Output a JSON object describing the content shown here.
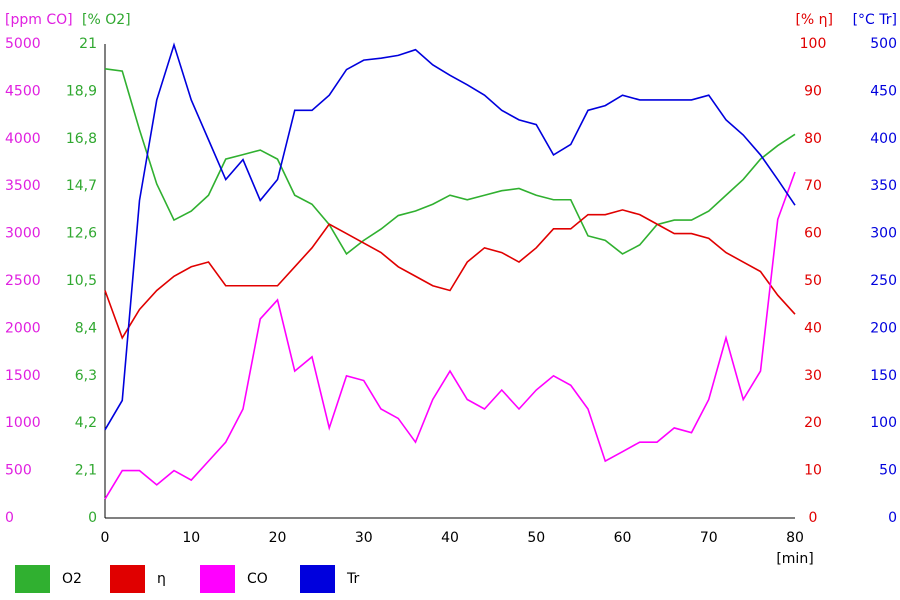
{
  "chart_data": {
    "type": "line",
    "x_label": "[min]",
    "xlim": [
      0,
      80
    ],
    "xticks": [
      0,
      10,
      20,
      30,
      40,
      50,
      60,
      70,
      80
    ],
    "x": [
      0,
      2,
      4,
      6,
      8,
      10,
      12,
      14,
      16,
      18,
      20,
      22,
      24,
      26,
      28,
      30,
      32,
      34,
      36,
      38,
      40,
      42,
      44,
      46,
      48,
      50,
      52,
      54,
      56,
      58,
      60,
      62,
      64,
      66,
      68,
      70,
      72,
      74,
      76,
      78,
      80
    ],
    "axes": [
      {
        "title": "[ppm CO]",
        "color": "#e020e0",
        "lim": [
          0,
          5000
        ],
        "ticks": [
          0,
          500,
          1000,
          1500,
          2000,
          2500,
          3000,
          3500,
          4000,
          4500,
          5000
        ]
      },
      {
        "title": "[% O2]",
        "color": "#30a830",
        "lim": [
          0,
          21
        ],
        "ticks": [
          0,
          {
            "value": 2.1,
            "label": "2,1"
          },
          {
            "value": 4.2,
            "label": "4,2"
          },
          {
            "value": 6.3,
            "label": "6,3"
          },
          {
            "value": 8.4,
            "label": "8,4"
          },
          {
            "value": 10.5,
            "label": "10,5"
          },
          {
            "value": 12.6,
            "label": "12,6"
          },
          {
            "value": 14.7,
            "label": "14,7"
          },
          {
            "value": 16.8,
            "label": "16,8"
          },
          {
            "value": 18.9,
            "label": "18,9"
          },
          21
        ]
      },
      {
        "title": "[% η]",
        "color": "#e00000",
        "lim": [
          0,
          100
        ],
        "ticks": [
          0,
          10,
          20,
          30,
          40,
          50,
          60,
          70,
          80,
          90,
          100
        ]
      },
      {
        "title": "[°C Tr]",
        "color": "#0000dd",
        "lim": [
          0,
          500
        ],
        "ticks": [
          0,
          50,
          100,
          150,
          200,
          250,
          300,
          350,
          400,
          450,
          500
        ]
      }
    ],
    "series": [
      {
        "name": "O2",
        "color": "#30b030",
        "axis": 1,
        "values": [
          19.9,
          19.8,
          17.2,
          14.8,
          13.2,
          13.6,
          14.3,
          15.9,
          16.1,
          16.3,
          15.9,
          14.3,
          13.9,
          13.0,
          11.7,
          12.3,
          12.8,
          13.4,
          13.6,
          13.9,
          14.3,
          14.1,
          14.3,
          14.5,
          14.6,
          14.3,
          14.1,
          14.1,
          12.5,
          12.3,
          11.7,
          12.1,
          13.0,
          13.2,
          13.2,
          13.6,
          14.3,
          15.0,
          15.9,
          16.5,
          17.0
        ]
      },
      {
        "name": "η",
        "color": "#e00000",
        "axis": 2,
        "values": [
          48,
          38,
          44,
          48,
          51,
          53,
          54,
          49,
          49,
          49,
          49,
          53,
          57,
          62,
          60,
          58,
          56,
          53,
          51,
          49,
          48,
          54,
          57,
          56,
          54,
          57,
          61,
          61,
          64,
          64,
          65,
          64,
          62,
          60,
          60,
          59,
          56,
          54,
          52,
          47,
          43
        ]
      },
      {
        "name": "CO",
        "color": "#ff00ff",
        "axis": 0,
        "values": [
          200,
          500,
          500,
          350,
          500,
          400,
          600,
          800,
          1150,
          2100,
          2300,
          1550,
          1700,
          950,
          1500,
          1450,
          1150,
          1050,
          800,
          1250,
          1550,
          1250,
          1150,
          1350,
          1150,
          1350,
          1500,
          1400,
          1150,
          600,
          700,
          800,
          800,
          950,
          900,
          1250,
          1900,
          1250,
          1550,
          3150,
          3650
        ]
      },
      {
        "name": "Tr",
        "color": "#0000dd",
        "axis": 3,
        "values": [
          93,
          124,
          335,
          441,
          499,
          441,
          399,
          357,
          378,
          335,
          357,
          430,
          430,
          446,
          473,
          483,
          485,
          488,
          494,
          478,
          467,
          457,
          446,
          430,
          420,
          415,
          383,
          394,
          430,
          435,
          446,
          441,
          441,
          441,
          441,
          446,
          420,
          404,
          383,
          357,
          330
        ]
      }
    ]
  }
}
